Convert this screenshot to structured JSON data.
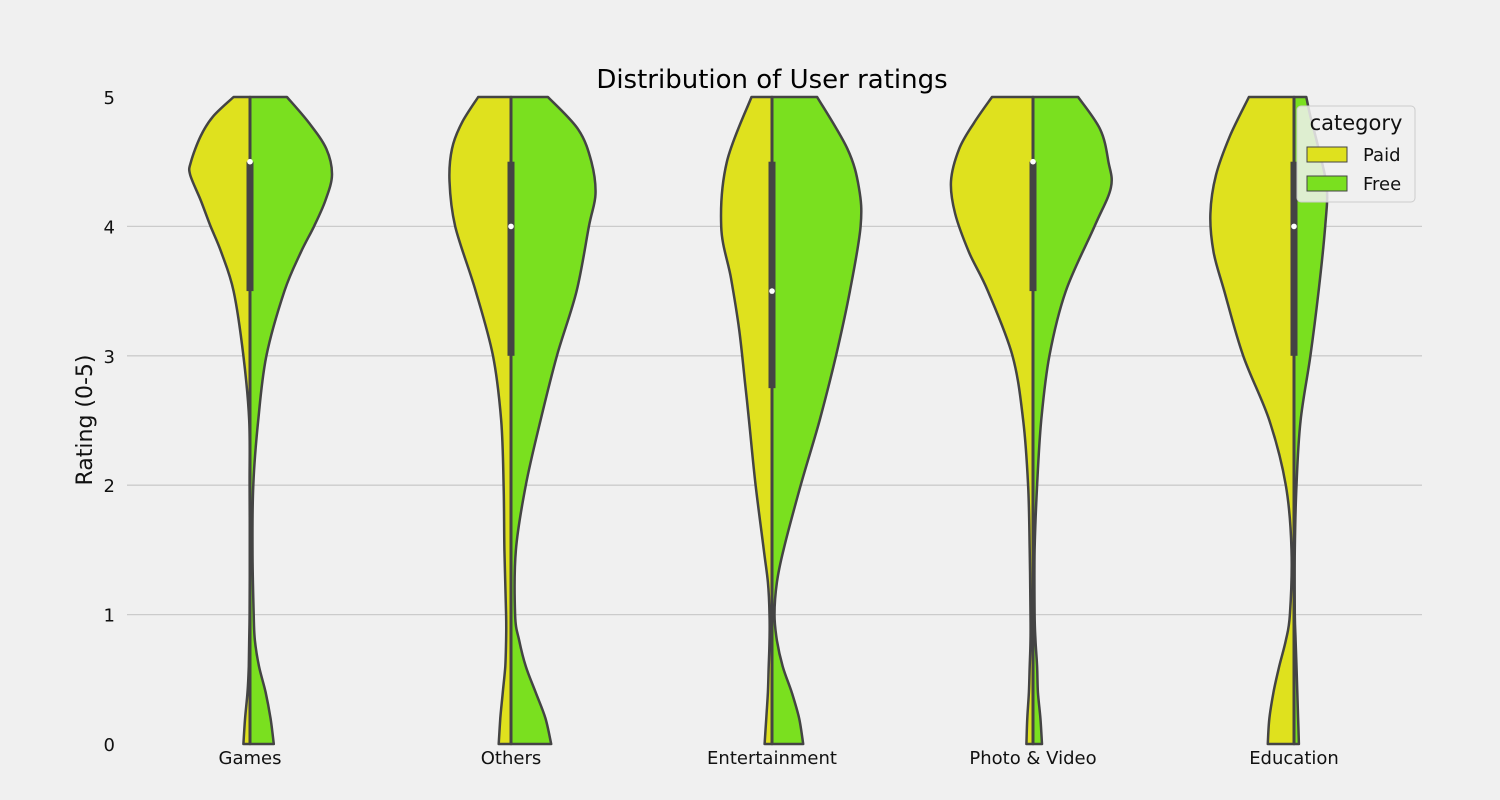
{
  "colors": {
    "background": "#f0f0f0",
    "grid": "#cbcbcb",
    "paid": "#dfe11e",
    "free": "#7ae01f",
    "outline": "#444444",
    "median": "#ffffff"
  },
  "chart_data": {
    "type": "violin",
    "title": "Distribution of User ratings",
    "xlabel": "",
    "ylabel": "Rating (0-5)",
    "ylim": [
      0,
      5
    ],
    "yticks": [
      0,
      1,
      2,
      3,
      4,
      5
    ],
    "grid": true,
    "split": true,
    "legend": {
      "title": "category",
      "placement": "top-right",
      "entries": [
        {
          "name": "Paid",
          "color": "#dfe11e"
        },
        {
          "name": "Free",
          "color": "#7ae01f"
        }
      ]
    },
    "categories": [
      "Games",
      "Others",
      "Entertainment",
      "Photo & Video",
      "Education"
    ],
    "violins": [
      {
        "category": "Games",
        "quartiles": {
          "q1": 3.5,
          "median": 4.5,
          "q3": 4.5
        },
        "paid_density": [
          [
            0,
            0.08
          ],
          [
            0.2,
            0.06
          ],
          [
            0.4,
            0.03
          ],
          [
            0.6,
            0.015
          ],
          [
            0.8,
            0.01
          ],
          [
            1.0,
            0.005
          ],
          [
            1.5,
            0.003
          ],
          [
            2.0,
            0.005
          ],
          [
            2.5,
            0.01
          ],
          [
            3.0,
            0.08
          ],
          [
            3.5,
            0.2
          ],
          [
            3.8,
            0.35
          ],
          [
            4.0,
            0.48
          ],
          [
            4.2,
            0.6
          ],
          [
            4.4,
            0.73
          ],
          [
            4.5,
            0.72
          ],
          [
            4.7,
            0.6
          ],
          [
            4.85,
            0.45
          ],
          [
            5.0,
            0.2
          ]
        ],
        "free_density": [
          [
            0,
            0.29
          ],
          [
            0.2,
            0.25
          ],
          [
            0.4,
            0.19
          ],
          [
            0.6,
            0.11
          ],
          [
            0.8,
            0.06
          ],
          [
            1.0,
            0.045
          ],
          [
            1.5,
            0.03
          ],
          [
            2.0,
            0.04
          ],
          [
            2.5,
            0.1
          ],
          [
            3.0,
            0.2
          ],
          [
            3.5,
            0.42
          ],
          [
            3.8,
            0.62
          ],
          [
            4.0,
            0.78
          ],
          [
            4.2,
            0.92
          ],
          [
            4.4,
            1.0
          ],
          [
            4.6,
            0.93
          ],
          [
            4.8,
            0.72
          ],
          [
            5.0,
            0.45
          ]
        ]
      },
      {
        "category": "Others",
        "quartiles": {
          "q1": 3.0,
          "median": 4.0,
          "q3": 4.5
        },
        "paid_density": [
          [
            0,
            0.15
          ],
          [
            0.2,
            0.13
          ],
          [
            0.4,
            0.1
          ],
          [
            0.6,
            0.07
          ],
          [
            0.8,
            0.06
          ],
          [
            1.0,
            0.06
          ],
          [
            1.5,
            0.08
          ],
          [
            2.0,
            0.09
          ],
          [
            2.5,
            0.12
          ],
          [
            3.0,
            0.22
          ],
          [
            3.5,
            0.43
          ],
          [
            4.0,
            0.68
          ],
          [
            4.35,
            0.75
          ],
          [
            4.6,
            0.72
          ],
          [
            4.8,
            0.6
          ],
          [
            5.0,
            0.4
          ]
        ],
        "free_density": [
          [
            0,
            0.49
          ],
          [
            0.2,
            0.42
          ],
          [
            0.4,
            0.3
          ],
          [
            0.6,
            0.18
          ],
          [
            0.8,
            0.1
          ],
          [
            1.0,
            0.05
          ],
          [
            1.5,
            0.06
          ],
          [
            2.0,
            0.18
          ],
          [
            2.5,
            0.36
          ],
          [
            3.0,
            0.56
          ],
          [
            3.5,
            0.8
          ],
          [
            4.0,
            0.95
          ],
          [
            4.25,
            1.03
          ],
          [
            4.5,
            0.98
          ],
          [
            4.75,
            0.82
          ],
          [
            5.0,
            0.45
          ]
        ]
      },
      {
        "category": "Entertainment",
        "quartiles": {
          "q1": 2.75,
          "median": 3.5,
          "q3": 4.5
        },
        "paid_density": [
          [
            0,
            0.09
          ],
          [
            0.2,
            0.07
          ],
          [
            0.4,
            0.05
          ],
          [
            0.6,
            0.04
          ],
          [
            0.8,
            0.03
          ],
          [
            1.0,
            0.03
          ],
          [
            1.25,
            0.05
          ],
          [
            1.5,
            0.1
          ],
          [
            2.0,
            0.2
          ],
          [
            2.5,
            0.28
          ],
          [
            2.8,
            0.33
          ],
          [
            3.2,
            0.4
          ],
          [
            3.6,
            0.5
          ],
          [
            4.0,
            0.62
          ],
          [
            4.5,
            0.55
          ],
          [
            5.0,
            0.25
          ]
        ],
        "free_density": [
          [
            0,
            0.38
          ],
          [
            0.2,
            0.33
          ],
          [
            0.4,
            0.24
          ],
          [
            0.6,
            0.13
          ],
          [
            0.8,
            0.06
          ],
          [
            1.0,
            0.03
          ],
          [
            1.25,
            0.06
          ],
          [
            1.5,
            0.14
          ],
          [
            2.0,
            0.35
          ],
          [
            2.5,
            0.58
          ],
          [
            3.0,
            0.78
          ],
          [
            3.5,
            0.95
          ],
          [
            4.0,
            1.08
          ],
          [
            4.3,
            1.06
          ],
          [
            4.6,
            0.92
          ],
          [
            5.0,
            0.55
          ]
        ]
      },
      {
        "category": "Photo & Video",
        "quartiles": {
          "q1": 3.5,
          "median": 4.5,
          "q3": 4.5
        },
        "paid_density": [
          [
            0,
            0.08
          ],
          [
            0.2,
            0.07
          ],
          [
            0.4,
            0.05
          ],
          [
            0.6,
            0.04
          ],
          [
            0.8,
            0.03
          ],
          [
            1.0,
            0.03
          ],
          [
            1.5,
            0.04
          ],
          [
            2.0,
            0.06
          ],
          [
            2.5,
            0.12
          ],
          [
            3.0,
            0.25
          ],
          [
            3.5,
            0.55
          ],
          [
            3.8,
            0.78
          ],
          [
            4.1,
            0.95
          ],
          [
            4.35,
            1.0
          ],
          [
            4.6,
            0.9
          ],
          [
            4.8,
            0.72
          ],
          [
            5.0,
            0.5
          ]
        ],
        "free_density": [
          [
            0,
            0.11
          ],
          [
            0.2,
            0.09
          ],
          [
            0.4,
            0.06
          ],
          [
            0.6,
            0.05
          ],
          [
            0.8,
            0.03
          ],
          [
            1.0,
            0.02
          ],
          [
            1.5,
            0.02
          ],
          [
            2.0,
            0.05
          ],
          [
            2.5,
            0.1
          ],
          [
            3.0,
            0.2
          ],
          [
            3.5,
            0.4
          ],
          [
            4.0,
            0.75
          ],
          [
            4.3,
            0.95
          ],
          [
            4.5,
            0.92
          ],
          [
            4.75,
            0.82
          ],
          [
            5.0,
            0.55
          ]
        ]
      },
      {
        "category": "Education",
        "quartiles": {
          "q1": 3.0,
          "median": 4.0,
          "q3": 4.5
        },
        "paid_density": [
          [
            0,
            0.32
          ],
          [
            0.2,
            0.3
          ],
          [
            0.4,
            0.25
          ],
          [
            0.6,
            0.18
          ],
          [
            0.8,
            0.1
          ],
          [
            1.0,
            0.05
          ],
          [
            1.5,
            0.03
          ],
          [
            2.0,
            0.1
          ],
          [
            2.5,
            0.3
          ],
          [
            3.0,
            0.62
          ],
          [
            3.5,
            0.85
          ],
          [
            3.8,
            0.98
          ],
          [
            4.1,
            1.02
          ],
          [
            4.4,
            0.95
          ],
          [
            4.7,
            0.78
          ],
          [
            5.0,
            0.55
          ]
        ],
        "free_density": [
          [
            0,
            0.06
          ],
          [
            0.2,
            0.05
          ],
          [
            0.4,
            0.04
          ],
          [
            0.6,
            0.03
          ],
          [
            0.8,
            0.02
          ],
          [
            1.0,
            0.01
          ],
          [
            1.5,
            0.01
          ],
          [
            2.0,
            0.03
          ],
          [
            2.5,
            0.08
          ],
          [
            3.0,
            0.2
          ],
          [
            3.5,
            0.3
          ],
          [
            4.0,
            0.38
          ],
          [
            4.3,
            0.4
          ],
          [
            4.6,
            0.3
          ],
          [
            4.85,
            0.2
          ],
          [
            5.0,
            0.15
          ]
        ]
      }
    ]
  }
}
